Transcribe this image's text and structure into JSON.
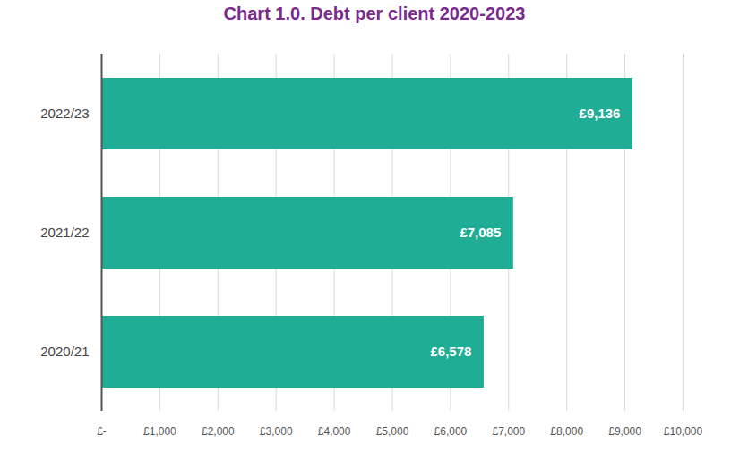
{
  "chart_data": {
    "type": "bar",
    "title": "Chart 1.0. Debt per client 2020-2023",
    "orientation": "horizontal",
    "categories": [
      "2022/23",
      "2021/22",
      "2020/21"
    ],
    "values": [
      9136,
      7085,
      6578
    ],
    "value_labels": [
      "£9,136",
      "£7,085",
      "£6,578"
    ],
    "data_labels": true,
    "color": "#1fad95",
    "xlim": [
      0,
      10000
    ],
    "xticks": [
      {
        "value": 0,
        "label": "£-"
      },
      {
        "value": 1000,
        "label": "£1,000"
      },
      {
        "value": 2000,
        "label": "£2,000"
      },
      {
        "value": 3000,
        "label": "£3,000"
      },
      {
        "value": 4000,
        "label": "£4,000"
      },
      {
        "value": 5000,
        "label": "£5,000"
      },
      {
        "value": 6000,
        "label": "£6,000"
      },
      {
        "value": 7000,
        "label": "£7,000"
      },
      {
        "value": 8000,
        "label": "£8,000"
      },
      {
        "value": 9000,
        "label": "£9,000"
      },
      {
        "value": 10000,
        "label": "£10,000"
      }
    ],
    "grid": true
  }
}
